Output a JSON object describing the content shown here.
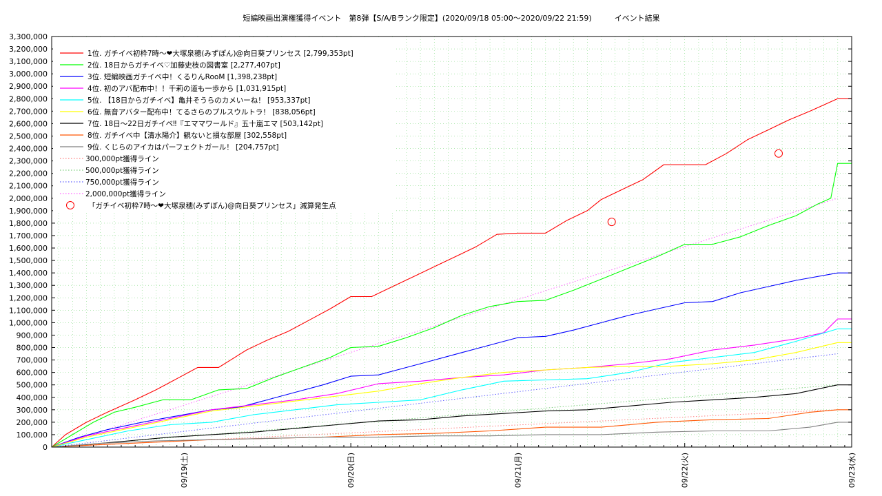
{
  "chart_data": {
    "type": "line",
    "title": "短編映画出演権獲得イベント　第8弾【S/A/Bランク限定】(2020/09/18 05:00〜2020/09/22 21:59)　　　イベント結果",
    "xlabel": "",
    "ylabel": "",
    "ylim": [
      0,
      3300000
    ],
    "y_ticks": [
      0,
      100000,
      200000,
      300000,
      400000,
      500000,
      600000,
      700000,
      800000,
      900000,
      1000000,
      1100000,
      1200000,
      1300000,
      1400000,
      1500000,
      1600000,
      1700000,
      1800000,
      1900000,
      2000000,
      2100000,
      2200000,
      2300000,
      2400000,
      2500000,
      2600000,
      2700000,
      2800000,
      2900000,
      3000000,
      3100000,
      3200000,
      3300000
    ],
    "y_tick_labels": [
      "0",
      "100,000",
      "200,000",
      "300,000",
      "400,000",
      "500,000",
      "600,000",
      "700,000",
      "800,000",
      "900,000",
      "1,000,000",
      "1,100,000",
      "1,200,000",
      "1,300,000",
      "1,400,000",
      "1,500,000",
      "1,600,000",
      "1,700,000",
      "1,800,000",
      "1,900,000",
      "2,000,000",
      "2,100,000",
      "2,200,000",
      "2,300,000",
      "2,400,000",
      "2,500,000",
      "2,600,000",
      "2,700,000",
      "2,800,000",
      "2,900,000",
      "3,000,000",
      "3,100,000",
      "3,200,000",
      "3,300,000"
    ],
    "xlim": [
      "2020-09-18 05:00",
      "2020-09-23 00:00"
    ],
    "x_ticks": [
      "2020-09-19 00:00",
      "2020-09-20 00:00",
      "2020-09-21 00:00",
      "2020-09-22 00:00",
      "2020-09-23 00:00"
    ],
    "x_tick_labels": [
      "09/19(土)",
      "09/20(日)",
      "09/21(月)",
      "09/22(火)",
      "09/23(水)"
    ],
    "grid": true,
    "legend_position": "top-left",
    "series": [
      {
        "name": "1位. ガチイベ初枠7時〜❤大塚泉穂(みずぽん)@向日葵プリンセス [2,799,353pt]",
        "color": "#ff0000",
        "x": [
          "2020-09-18 05:00",
          "2020-09-18 07:00",
          "2020-09-18 10:00",
          "2020-09-18 13:00",
          "2020-09-18 17:00",
          "2020-09-18 20:00",
          "2020-09-18 23:00",
          "2020-09-19 02:00",
          "2020-09-19 05:00",
          "2020-09-19 07:00",
          "2020-09-19 09:00",
          "2020-09-19 12:00",
          "2020-09-19 15:00",
          "2020-09-19 18:00",
          "2020-09-19 21:00",
          "2020-09-20 00:00",
          "2020-09-20 03:00",
          "2020-09-20 06:00",
          "2020-09-20 09:00",
          "2020-09-20 12:00",
          "2020-09-20 15:00",
          "2020-09-20 18:00",
          "2020-09-20 21:00",
          "2020-09-21 00:00",
          "2020-09-21 04:00",
          "2020-09-21 07:00",
          "2020-09-21 10:00",
          "2020-09-21 12:00",
          "2020-09-21 15:00",
          "2020-09-21 18:00",
          "2020-09-21 21:00",
          "2020-09-22 00:00",
          "2020-09-22 03:00",
          "2020-09-22 06:00",
          "2020-09-22 09:00",
          "2020-09-22 12:00",
          "2020-09-22 15:00",
          "2020-09-22 18:00",
          "2020-09-22 21:59",
          "2020-09-23 00:00"
        ],
        "y": [
          0,
          100000,
          200000,
          280000,
          380000,
          460000,
          550000,
          640000,
          640000,
          710000,
          780000,
          860000,
          930000,
          1020000,
          1110000,
          1210000,
          1210000,
          1290000,
          1370000,
          1450000,
          1530000,
          1610000,
          1710000,
          1720000,
          1720000,
          1820000,
          1900000,
          1990000,
          2070000,
          2150000,
          2270000,
          2270000,
          2270000,
          2360000,
          2470000,
          2550000,
          2630000,
          2700000,
          2800000,
          2800000
        ]
      },
      {
        "name": "2位. 18日からガチイベ♡加藤史枝の図書室 [2,277,407pt]",
        "color": "#00ff00",
        "x": [
          "2020-09-18 05:00",
          "2020-09-18 08:00",
          "2020-09-18 11:00",
          "2020-09-18 14:00",
          "2020-09-18 17:00",
          "2020-09-18 21:00",
          "2020-09-19 01:00",
          "2020-09-19 05:00",
          "2020-09-19 09:00",
          "2020-09-19 13:00",
          "2020-09-19 17:00",
          "2020-09-19 21:00",
          "2020-09-20 00:00",
          "2020-09-20 04:00",
          "2020-09-20 08:00",
          "2020-09-20 12:00",
          "2020-09-20 16:00",
          "2020-09-20 20:00",
          "2020-09-21 00:00",
          "2020-09-21 04:00",
          "2020-09-21 08:00",
          "2020-09-21 12:00",
          "2020-09-21 16:00",
          "2020-09-21 20:00",
          "2020-09-22 00:00",
          "2020-09-22 04:00",
          "2020-09-22 08:00",
          "2020-09-22 12:00",
          "2020-09-22 16:00",
          "2020-09-22 19:00",
          "2020-09-22 21:00",
          "2020-09-22 21:59",
          "2020-09-23 00:00"
        ],
        "y": [
          0,
          100000,
          200000,
          280000,
          320000,
          380000,
          380000,
          460000,
          470000,
          560000,
          640000,
          720000,
          800000,
          810000,
          880000,
          960000,
          1060000,
          1130000,
          1170000,
          1180000,
          1260000,
          1350000,
          1440000,
          1530000,
          1630000,
          1630000,
          1690000,
          1780000,
          1860000,
          1950000,
          2000000,
          2280000,
          2280000
        ]
      },
      {
        "name": "3位. 短編映画ガチイベ中！くるりんRooM [1,398,238pt]",
        "color": "#0000ff",
        "x": [
          "2020-09-18 05:00",
          "2020-09-18 09:00",
          "2020-09-18 13:00",
          "2020-09-18 18:00",
          "2020-09-18 23:00",
          "2020-09-19 04:00",
          "2020-09-19 08:00",
          "2020-09-19 12:00",
          "2020-09-19 16:00",
          "2020-09-19 20:00",
          "2020-09-20 00:00",
          "2020-09-20 04:00",
          "2020-09-20 08:00",
          "2020-09-20 12:00",
          "2020-09-20 16:00",
          "2020-09-20 20:00",
          "2020-09-21 00:00",
          "2020-09-21 04:00",
          "2020-09-21 08:00",
          "2020-09-21 12:00",
          "2020-09-21 16:00",
          "2020-09-21 20:00",
          "2020-09-22 00:00",
          "2020-09-22 04:00",
          "2020-09-22 08:00",
          "2020-09-22 12:00",
          "2020-09-22 16:00",
          "2020-09-22 21:59",
          "2020-09-23 00:00"
        ],
        "y": [
          0,
          80000,
          140000,
          200000,
          250000,
          300000,
          320000,
          380000,
          440000,
          500000,
          570000,
          580000,
          640000,
          700000,
          760000,
          820000,
          880000,
          890000,
          940000,
          1000000,
          1060000,
          1110000,
          1160000,
          1170000,
          1240000,
          1290000,
          1340000,
          1400000,
          1400000
        ]
      },
      {
        "name": "4位. 初のアバ配布中！！千莉の道も一歩から [1,031,915pt]",
        "color": "#ff00ff",
        "x": [
          "2020-09-18 05:00",
          "2020-09-18 10:00",
          "2020-09-18 16:00",
          "2020-09-18 22:00",
          "2020-09-19 04:00",
          "2020-09-19 10:00",
          "2020-09-19 16:00",
          "2020-09-19 22:00",
          "2020-09-20 04:00",
          "2020-09-20 10:00",
          "2020-09-20 16:00",
          "2020-09-20 22:00",
          "2020-09-21 04:00",
          "2020-09-21 10:00",
          "2020-09-21 16:00",
          "2020-09-21 22:00",
          "2020-09-22 04:00",
          "2020-09-22 10:00",
          "2020-09-22 16:00",
          "2020-09-22 20:00",
          "2020-09-22 21:59",
          "2020-09-23 00:00"
        ],
        "y": [
          0,
          90000,
          160000,
          230000,
          300000,
          340000,
          380000,
          430000,
          510000,
          530000,
          560000,
          580000,
          620000,
          640000,
          670000,
          710000,
          780000,
          820000,
          870000,
          920000,
          1030000,
          1030000
        ]
      },
      {
        "name": "5位. 【18日からガチイベ】亀井そうらのカメいーね！ [953,337pt]",
        "color": "#00ffff",
        "x": [
          "2020-09-18 05:00",
          "2020-09-18 10:00",
          "2020-09-18 16:00",
          "2020-09-18 22:00",
          "2020-09-19 04:00",
          "2020-09-19 10:00",
          "2020-09-19 16:00",
          "2020-09-19 22:00",
          "2020-09-20 04:00",
          "2020-09-20 10:00",
          "2020-09-20 16:00",
          "2020-09-20 22:00",
          "2020-09-21 04:00",
          "2020-09-21 10:00",
          "2020-09-21 16:00",
          "2020-09-21 22:00",
          "2020-09-22 04:00",
          "2020-09-22 10:00",
          "2020-09-22 16:00",
          "2020-09-22 21:59",
          "2020-09-23 00:00"
        ],
        "y": [
          0,
          60000,
          130000,
          180000,
          200000,
          260000,
          300000,
          340000,
          360000,
          380000,
          460000,
          530000,
          540000,
          550000,
          600000,
          680000,
          720000,
          760000,
          850000,
          950000,
          950000
        ]
      },
      {
        "name": "6位. 無音アバター配布中！てるさらのプルスウルトラ！ [838,056pt]",
        "color": "#ffff00",
        "x": [
          "2020-09-18 05:00",
          "2020-09-18 10:00",
          "2020-09-18 16:00",
          "2020-09-18 22:00",
          "2020-09-19 04:00",
          "2020-09-19 10:00",
          "2020-09-19 16:00",
          "2020-09-19 22:00",
          "2020-09-20 04:00",
          "2020-09-20 10:00",
          "2020-09-20 16:00",
          "2020-09-20 22:00",
          "2020-09-21 04:00",
          "2020-09-21 10:00",
          "2020-09-21 16:00",
          "2020-09-21 22:00",
          "2020-09-22 04:00",
          "2020-09-22 10:00",
          "2020-09-22 16:00",
          "2020-09-22 21:59",
          "2020-09-23 00:00"
        ],
        "y": [
          0,
          80000,
          150000,
          220000,
          290000,
          330000,
          370000,
          410000,
          450000,
          510000,
          560000,
          600000,
          620000,
          640000,
          650000,
          650000,
          670000,
          700000,
          760000,
          840000,
          840000
        ]
      },
      {
        "name": "7位. 18日〜22日ガチイベ‼『エママワールド』五十嵐エマ [503,142pt]",
        "color": "#000000",
        "x": [
          "2020-09-18 05:00",
          "2020-09-18 10:00",
          "2020-09-18 16:00",
          "2020-09-18 22:00",
          "2020-09-19 04:00",
          "2020-09-19 10:00",
          "2020-09-19 16:00",
          "2020-09-19 22:00",
          "2020-09-20 04:00",
          "2020-09-20 10:00",
          "2020-09-20 16:00",
          "2020-09-20 22:00",
          "2020-09-21 04:00",
          "2020-09-21 10:00",
          "2020-09-21 16:00",
          "2020-09-21 22:00",
          "2020-09-22 04:00",
          "2020-09-22 10:00",
          "2020-09-22 16:00",
          "2020-09-22 21:59",
          "2020-09-23 00:00"
        ],
        "y": [
          0,
          20000,
          50000,
          80000,
          100000,
          120000,
          150000,
          180000,
          210000,
          220000,
          250000,
          270000,
          290000,
          300000,
          330000,
          360000,
          380000,
          400000,
          430000,
          500000,
          500000
        ]
      },
      {
        "name": "8位. ガチイベ中【清水陽介】観ないと損な部屋 [302,558pt]",
        "color": "#ff5500",
        "x": [
          "2020-09-18 05:00",
          "2020-09-18 12:00",
          "2020-09-18 20:00",
          "2020-09-19 04:00",
          "2020-09-19 12:00",
          "2020-09-19 20:00",
          "2020-09-20 04:00",
          "2020-09-20 12:00",
          "2020-09-20 20:00",
          "2020-09-21 04:00",
          "2020-09-21 12:00",
          "2020-09-21 20:00",
          "2020-09-22 04:00",
          "2020-09-22 12:00",
          "2020-09-22 18:00",
          "2020-09-22 21:59",
          "2020-09-23 00:00"
        ],
        "y": [
          0,
          20000,
          40000,
          60000,
          70000,
          80000,
          100000,
          110000,
          130000,
          160000,
          160000,
          200000,
          220000,
          230000,
          280000,
          300000,
          300000
        ]
      },
      {
        "name": "9位. くじらのアイカはパーフェクトガール！ [204,757pt]",
        "color": "#808080",
        "x": [
          "2020-09-18 05:00",
          "2020-09-18 12:00",
          "2020-09-18 20:00",
          "2020-09-19 04:00",
          "2020-09-19 12:00",
          "2020-09-19 20:00",
          "2020-09-20 04:00",
          "2020-09-20 12:00",
          "2020-09-20 20:00",
          "2020-09-21 04:00",
          "2020-09-21 12:00",
          "2020-09-21 20:00",
          "2020-09-22 04:00",
          "2020-09-22 12:00",
          "2020-09-22 18:00",
          "2020-09-22 21:59",
          "2020-09-23 00:00"
        ],
        "y": [
          0,
          30000,
          50000,
          60000,
          70000,
          80000,
          80000,
          90000,
          90000,
          100000,
          100000,
          120000,
          130000,
          130000,
          160000,
          200000,
          200000
        ]
      }
    ],
    "reference_lines": [
      {
        "name": "300,000pt獲得ライン",
        "color": "#ff8080",
        "x": [
          "2020-09-18 05:00",
          "2020-09-22 21:59"
        ],
        "y": [
          0,
          300000
        ]
      },
      {
        "name": "500,000pt獲得ライン",
        "color": "#80d080",
        "x": [
          "2020-09-18 05:00",
          "2020-09-22 21:59"
        ],
        "y": [
          0,
          500000
        ]
      },
      {
        "name": "750,000pt獲得ライン",
        "color": "#6060ff",
        "x": [
          "2020-09-18 05:00",
          "2020-09-22 21:59"
        ],
        "y": [
          0,
          750000
        ]
      },
      {
        "name": "2,000,000pt獲得ライン",
        "color": "#ff60ff",
        "x": [
          "2020-09-18 05:00",
          "2020-09-22 21:59"
        ],
        "y": [
          0,
          2000000
        ]
      }
    ],
    "markers": {
      "name": "「ガチイベ初枠7時〜❤大塚泉穂(みずぽん)@向日葵プリンセス」減算発生点",
      "color": "#ff0000",
      "x": [
        "2020-09-21 13:30",
        "2020-09-22 13:30"
      ],
      "y": [
        1810000,
        2360000
      ]
    }
  }
}
